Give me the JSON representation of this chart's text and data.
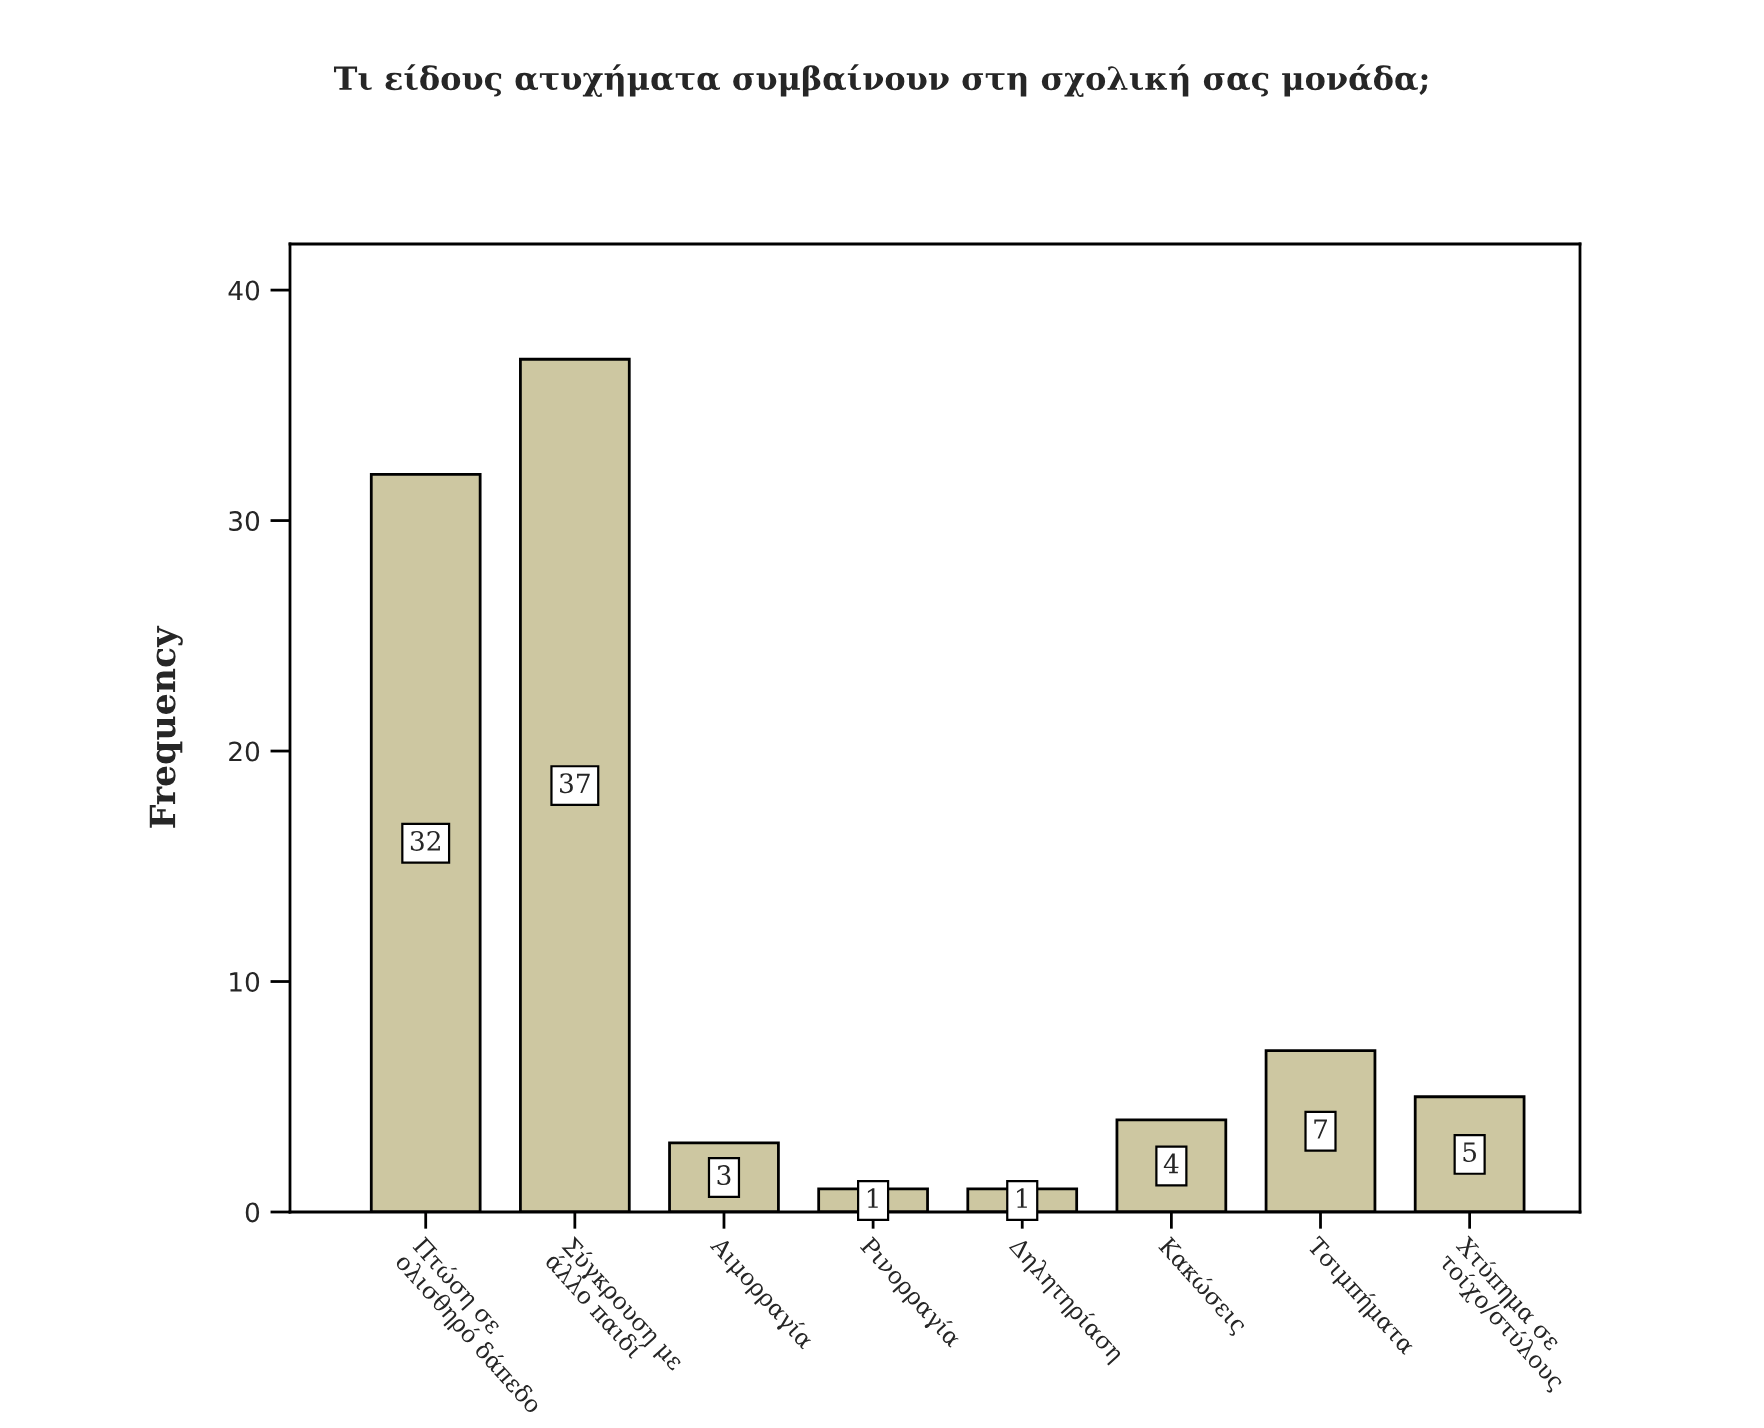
{
  "chart_data": {
    "type": "bar",
    "title": "Τι είδους ατυχήματα συμβαίνουν στη σχολική σας μονάδα;",
    "ylabel": "Frequency",
    "categories": [
      "Πτώση σε\nολισθηρό δάπεδο",
      "Σύγκρουση με\nάλλο παιδί",
      "Αιμορραγία",
      "Ρινορραγία",
      "Δηλητηρίαση",
      "Κακώσεις",
      "Τσιμπήματα",
      "Χτύπημα σε\nτοίχο/στύλους"
    ],
    "values": [
      32,
      37,
      3,
      1,
      1,
      4,
      7,
      5
    ],
    "color": "#d4cc9a",
    "ylim": [
      0,
      42
    ],
    "yticks": [
      0,
      10,
      20,
      30,
      40
    ],
    "grid": false,
    "data_labels": true
  }
}
